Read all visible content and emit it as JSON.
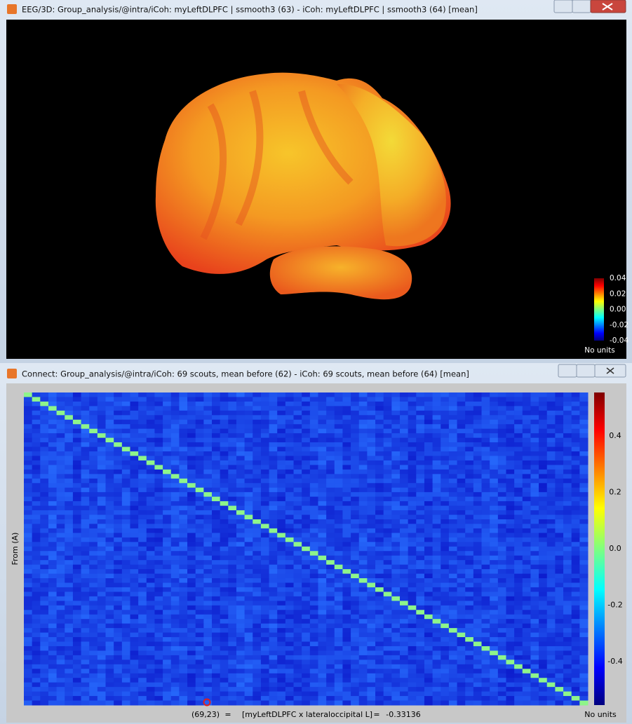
{
  "windows": [
    {
      "title": "EEG/3D: Group_analysis/@intra/iCoh: myLeftDLPFC | ssmooth3 (63) - iCoh: myLeftDLPFC | ssmooth3 (64) [mean]",
      "colorbar": {
        "ticks": [
          "0.04",
          "0.02",
          "0.00",
          "-0.02",
          "-0.04"
        ],
        "units": "No units"
      }
    },
    {
      "title": "Connect: Group_analysis/@intra/iCoh: 69 scouts, mean before (62) - iCoh: 69 scouts, mean before (64) [mean]",
      "y_label": "From (A)",
      "colorbar": {
        "ticks": [
          "0.4",
          "0.2",
          "0.0",
          "-0.2",
          "-0.4"
        ],
        "units": "No units"
      },
      "status": [
        "(69,23)",
        "=",
        "[myLeftDLPFC x lateraloccipital L]",
        "=",
        "-0.33136"
      ]
    }
  ]
}
